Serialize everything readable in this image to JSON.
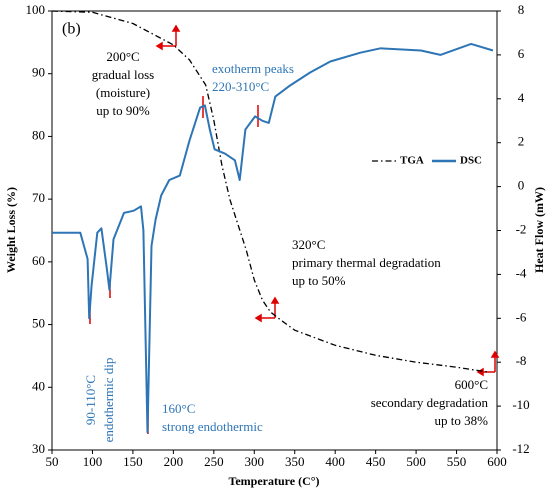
{
  "chart_data": {
    "type": "line",
    "panel": "(b)",
    "xlabel": "Temperature (C°)",
    "ylabel": "Weight Loss (%)",
    "y2label": "Heat Flow (mW)",
    "xlim": [
      50,
      600
    ],
    "xticks": [
      50,
      100,
      150,
      200,
      250,
      300,
      350,
      400,
      450,
      500,
      550,
      600
    ],
    "ylim": [
      30,
      100
    ],
    "yticks": [
      30,
      40,
      50,
      60,
      70,
      80,
      90,
      100
    ],
    "y2lim": [
      -12,
      8
    ],
    "y2ticks": [
      -12,
      -10,
      -8,
      -6,
      -4,
      -2,
      0,
      2,
      4,
      6,
      8
    ],
    "series": [
      {
        "name": "TGA",
        "color": "#000000",
        "axis": "y",
        "x": [
          50,
          100,
          150,
          200,
          220,
          240,
          250,
          260,
          270,
          280,
          290,
          300,
          310,
          320,
          330,
          350,
          400,
          450,
          500,
          550,
          590
        ],
        "values": [
          100,
          99.8,
          98,
          94.6,
          92.2,
          88.2,
          82.6,
          75.4,
          69.9,
          65.9,
          61.9,
          57.1,
          53.9,
          52,
          51,
          49.1,
          46.7,
          45.1,
          44,
          43.2,
          42.4
        ]
      },
      {
        "name": "DSC",
        "color": "#2e75b6",
        "axis": "y2",
        "x": [
          50,
          85,
          94,
          96,
          99,
          106,
          111,
          118,
          121,
          126,
          139,
          151,
          160,
          163,
          168,
          173,
          178,
          185,
          195,
          208,
          220,
          233,
          239,
          245,
          251,
          264,
          276,
          282,
          289,
          301,
          310,
          318,
          326,
          344,
          369,
          394,
          431,
          456,
          506,
          530,
          568,
          595
        ],
        "values": [
          -2.1,
          -2.1,
          -3.3,
          -6.0,
          -4.5,
          -2.1,
          -1.9,
          -3.8,
          -4.7,
          -2.4,
          -1.2,
          -1.1,
          -0.9,
          -2.0,
          -11.2,
          -2.7,
          -1.5,
          -0.4,
          0.3,
          0.5,
          2.1,
          3.6,
          3.7,
          2.6,
          1.7,
          1.5,
          1.2,
          0.3,
          2.6,
          3.2,
          3.0,
          2.9,
          4.1,
          4.6,
          5.2,
          5.7,
          6.1,
          6.3,
          6.2,
          6.0,
          6.5,
          6.2
        ]
      }
    ],
    "annotations": [
      [
        "200°C",
        "gradual loss",
        "(moisture)",
        "up to 90%"
      ],
      [
        "exotherm peaks",
        "220-310°C"
      ],
      [
        "320°C",
        "primary thermal degradation",
        "up to 50%"
      ],
      [
        "600°C",
        "secondary degradation",
        "up to 38%"
      ],
      [
        "90-110°C",
        "endothermic dip"
      ],
      [
        "160°C",
        "strong endothermic"
      ]
    ]
  }
}
